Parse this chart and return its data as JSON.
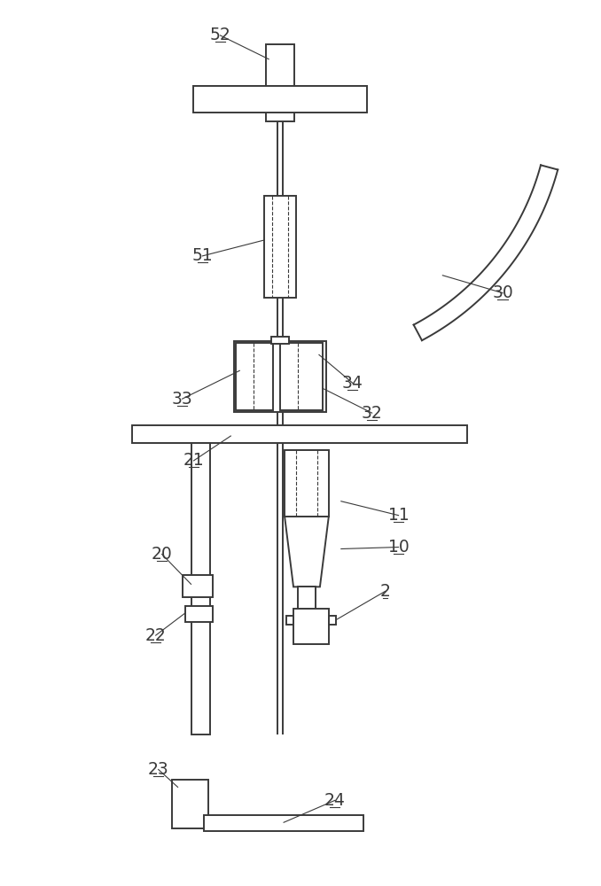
{
  "bg_color": "#ffffff",
  "line_color": "#3a3a3a",
  "lw": 1.4,
  "lw_thin": 0.8,
  "lw_thick": 2.0
}
